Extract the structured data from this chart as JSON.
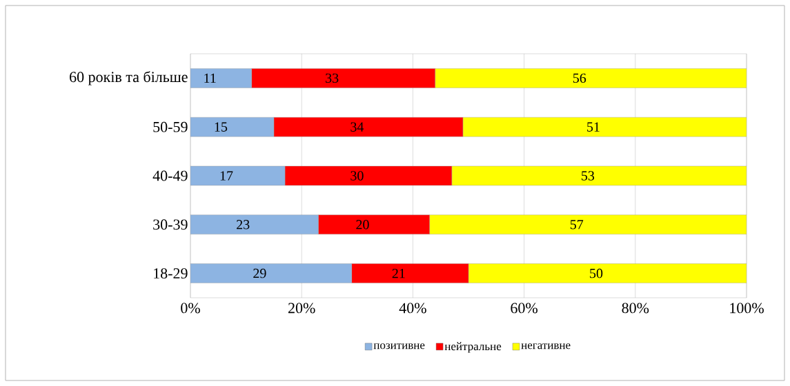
{
  "chart_data": {
    "type": "bar",
    "orientation": "horizontal",
    "stacked": true,
    "categories": [
      "60 років та більше",
      "50-59",
      "40-49",
      "30-39",
      "18-29"
    ],
    "series": [
      {
        "name": "позитивне",
        "color": "#8db4e2",
        "values": [
          11,
          15,
          17,
          23,
          29
        ]
      },
      {
        "name": "нейтральне",
        "color": "#ff0000",
        "values": [
          33,
          34,
          30,
          20,
          21
        ]
      },
      {
        "name": "негативне",
        "color": "#ffff00",
        "values": [
          56,
          51,
          53,
          57,
          50
        ]
      }
    ],
    "xlim": [
      0,
      100
    ],
    "xticks": [
      {
        "value": 0,
        "label": "0%"
      },
      {
        "value": 20,
        "label": "20%"
      },
      {
        "value": 40,
        "label": "40%"
      },
      {
        "value": 60,
        "label": "60%"
      },
      {
        "value": 80,
        "label": "80%"
      },
      {
        "value": 100,
        "label": "100%"
      }
    ],
    "grid": "x",
    "legend": "bottom",
    "data_labels": true
  }
}
